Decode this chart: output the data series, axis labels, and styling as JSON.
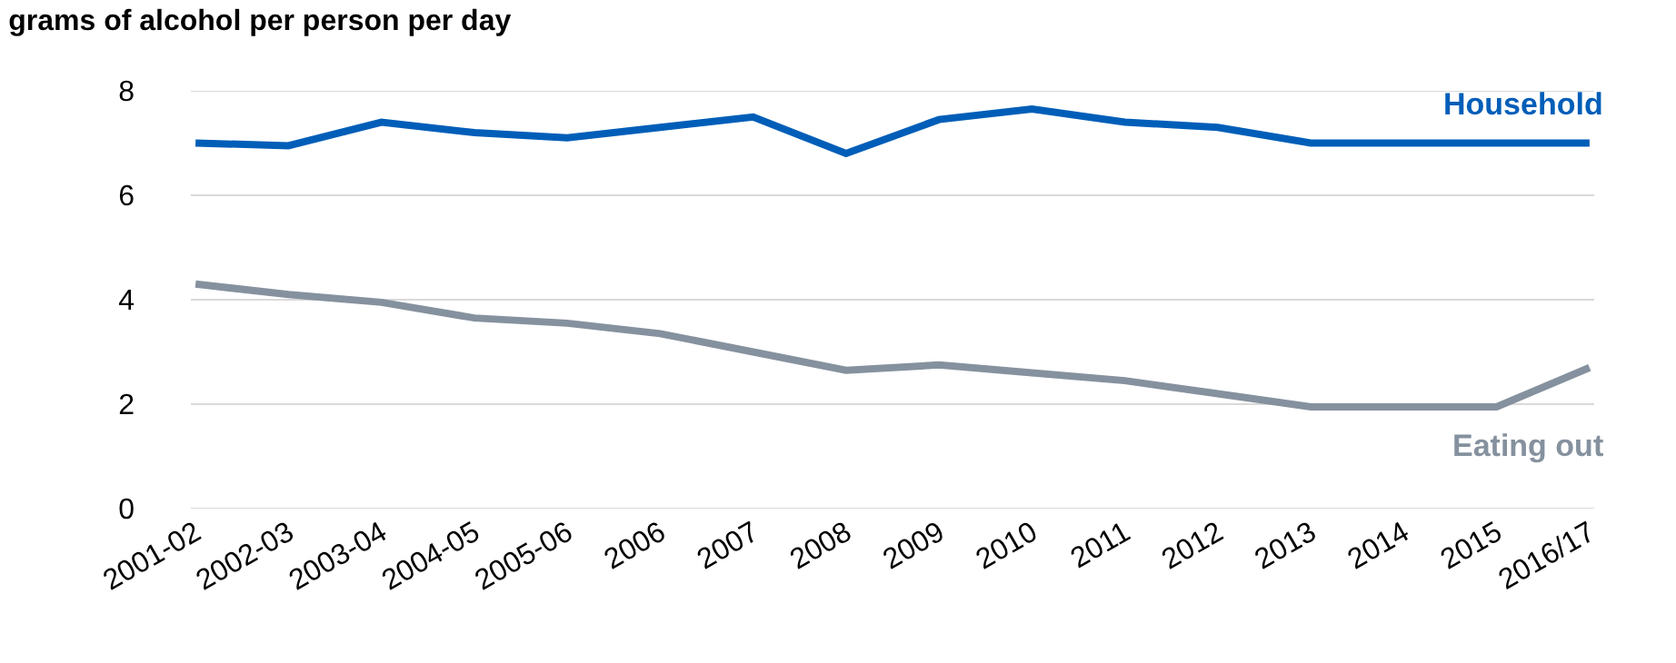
{
  "chart_data": {
    "type": "line",
    "title": "grams of alcohol per person per day",
    "categories": [
      "2001-02",
      "2002-03",
      "2003-04",
      "2004-05",
      "2005-06",
      "2006",
      "2007",
      "2008",
      "2009",
      "2010",
      "2011",
      "2012",
      "2013",
      "2014",
      "2015",
      "2016/17"
    ],
    "series": [
      {
        "name": "Household",
        "color": "#005eb8",
        "values": [
          7.0,
          6.95,
          7.4,
          7.2,
          7.1,
          7.3,
          7.5,
          6.8,
          7.45,
          7.65,
          7.4,
          7.3,
          7.0,
          7.0,
          7.0,
          7.0
        ]
      },
      {
        "name": "Eating out",
        "color": "#85919e",
        "values": [
          4.3,
          4.1,
          3.95,
          3.65,
          3.55,
          3.35,
          3.0,
          2.65,
          2.75,
          2.6,
          2.45,
          2.2,
          1.95,
          1.95,
          1.95,
          2.7
        ]
      }
    ],
    "ylim": [
      0,
      8
    ],
    "yticks": [
      0,
      2,
      4,
      6,
      8
    ],
    "grid": "y",
    "legend": false,
    "marker": "none",
    "line_style": "solid"
  }
}
